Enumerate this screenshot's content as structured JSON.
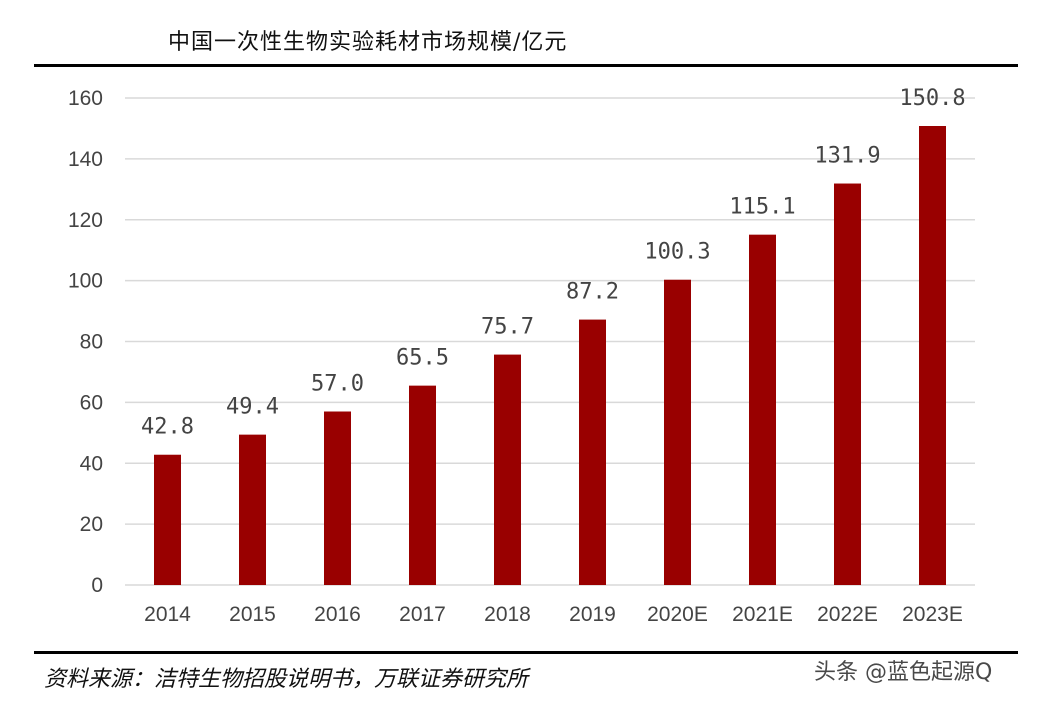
{
  "header": {
    "title": "中国一次性生物实验耗材市场规模/亿元"
  },
  "chart_data": {
    "type": "bar",
    "title": "中国一次性生物实验耗材市场规模/亿元",
    "xlabel": "",
    "ylabel": "",
    "categories": [
      "2014",
      "2015",
      "2016",
      "2017",
      "2018",
      "2019",
      "2020E",
      "2021E",
      "2022E",
      "2023E"
    ],
    "values": [
      42.8,
      49.4,
      57.0,
      65.5,
      75.7,
      87.2,
      100.3,
      115.1,
      131.9,
      150.8
    ],
    "value_labels": [
      "42.8",
      "49.4",
      "57.0",
      "65.5",
      "75.7",
      "87.2",
      "100.3",
      "115.1",
      "131.9",
      "150.8"
    ],
    "ylim": [
      0,
      160
    ],
    "yticks": [
      "0",
      "20",
      "40",
      "60",
      "80",
      "100",
      "120",
      "140",
      "160"
    ],
    "grid": true,
    "legend": "none",
    "bar_color": "#990000",
    "grid_color": "#d9d9d9"
  },
  "footer": {
    "source": "资料来源：洁特生物招股说明书，万联证券研究所",
    "watermark": "头条 @蓝色起源Q"
  }
}
